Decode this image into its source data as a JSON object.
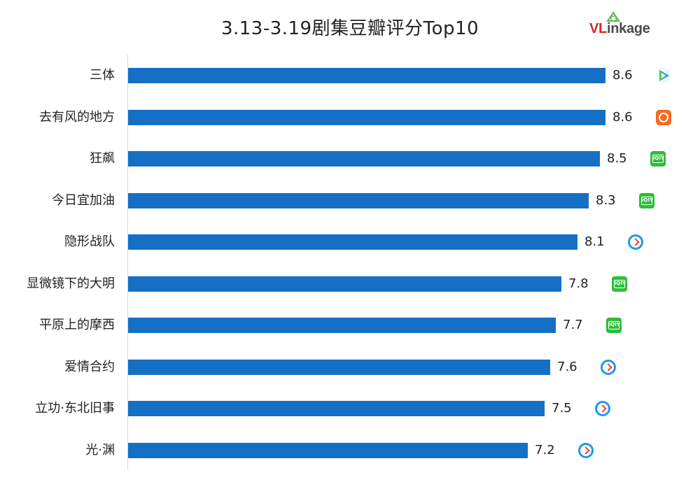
{
  "chart_data": {
    "type": "bar",
    "orientation": "horizontal",
    "title": "3.13-3.19剧集豆瓣评分Top10",
    "categories": [
      "三体",
      "去有风的地方",
      "狂飙",
      "今日宜加油",
      "隐形战队",
      "显微镜下的大明",
      "平原上的摩西",
      "爱情合约",
      "立功·东北旧事",
      "光·渊"
    ],
    "values": [
      8.6,
      8.6,
      8.5,
      8.3,
      8.1,
      7.8,
      7.7,
      7.6,
      7.5,
      7.2
    ],
    "platform_icons": [
      "tencent-video-icon",
      "mango-tv-icon",
      "iqiyi-icon",
      "iqiyi-icon",
      "youku-icon",
      "iqiyi-icon",
      "iqiyi-icon",
      "youku-icon",
      "youku-icon",
      "youku-icon"
    ],
    "bar_color": "#1570c5",
    "grid": false,
    "legend": "none"
  },
  "brand": {
    "logo_text": "VLinkage",
    "logo_prefix": "VL",
    "logo_suffix": "inkage",
    "logo_colors": [
      "#d7261e",
      "#4a4a4a"
    ]
  }
}
